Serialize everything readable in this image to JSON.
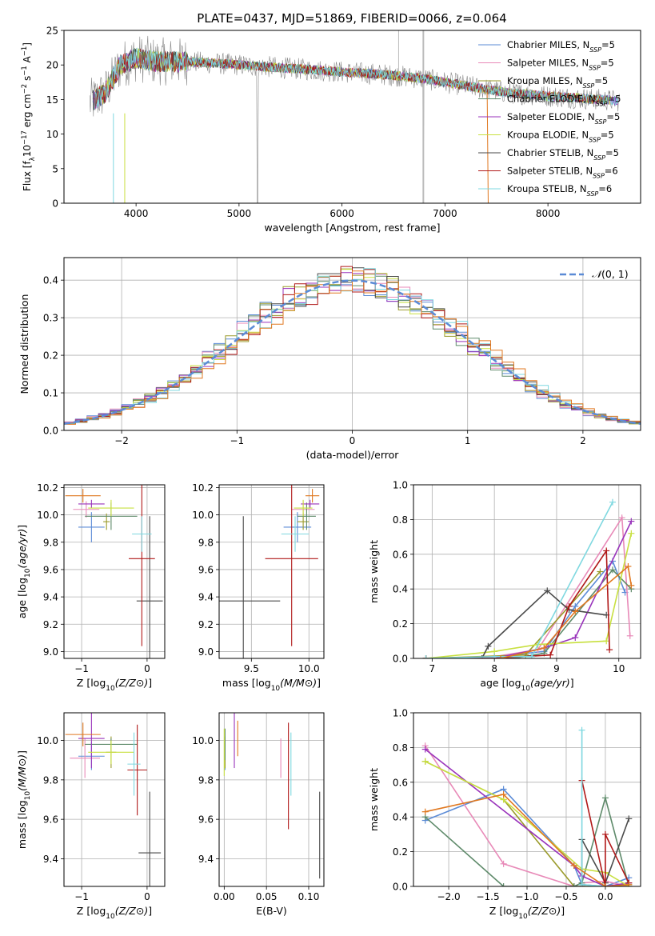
{
  "figure": {
    "title": "PLATE=0437, MJD=51869, FIBERID=0066, z=0.064"
  },
  "colors": {
    "c1": "#5b8bd6",
    "c2": "#e88ab8",
    "c3": "#9a9a2a",
    "c4": "#5e8a6a",
    "c5": "#9933bb",
    "c6": "#c8e040",
    "c7": "#4a4a4a",
    "c8": "#b01818",
    "c9": "#7fd8e0",
    "c10": "#e07820",
    "norm": "#5b8bd6",
    "grid": "#b0b0b0"
  },
  "chart_data": [
    {
      "id": "spectrum",
      "type": "line",
      "xlabel": "wavelength [Angstrom, rest frame]",
      "ylabel": "Flux [fλ10⁻¹⁷ erg cm⁻² s⁻¹ A⁻¹]",
      "xlim": [
        3300,
        8900
      ],
      "ylim": [
        0,
        25
      ],
      "xticks": [
        4000,
        5000,
        6000,
        7000,
        8000
      ],
      "yticks": [
        0,
        5,
        10,
        15,
        20,
        25
      ],
      "grid": false,
      "legend_position": "top-right",
      "data_range": [
        3550,
        8700
      ],
      "spectrum_knots": {
        "x": [
          3550,
          3700,
          3850,
          4000,
          4200,
          4500,
          5000,
          5500,
          6000,
          6500,
          6800,
          7000,
          7200,
          7400,
          7600,
          8000,
          8500,
          8700
        ],
        "y": [
          14.5,
          16,
          20,
          21,
          20.5,
          20.5,
          20,
          19.5,
          19,
          18.5,
          18,
          17.5,
          17,
          16.5,
          16,
          15.5,
          15,
          14.8
        ]
      },
      "series": [
        {
          "name": "Chabrier MILES, N_SSP=5",
          "label": "Chabrier MILES, N",
          "sub": "SSP",
          "tail": "=5",
          "color": "#5b8bd6"
        },
        {
          "name": "Salpeter MILES, N_SSP=5",
          "label": "Salpeter MILES, N",
          "sub": "SSP",
          "tail": "=5",
          "color": "#e88ab8"
        },
        {
          "name": "Kroupa MILES, N_SSP=5",
          "label": "Kroupa MILES, N",
          "sub": "SSP",
          "tail": "=5",
          "color": "#9a9a2a"
        },
        {
          "name": "Chabrier ELODIE, N_SSP=5",
          "label": "Chabrier ELODIE, N",
          "sub": "SSP",
          "tail": "=5",
          "color": "#5e8a6a"
        },
        {
          "name": "Salpeter ELODIE, N_SSP=5",
          "label": "Salpeter ELODIE, N",
          "sub": "SSP",
          "tail": "=5",
          "color": "#9933bb"
        },
        {
          "name": "Kroupa ELODIE, N_SSP=5",
          "label": "Kroupa ELODIE, N",
          "sub": "SSP",
          "tail": "=5",
          "color": "#c8e040"
        },
        {
          "name": "Chabrier STELIB, N_SSP=5",
          "label": "Chabrier STELIB, N",
          "sub": "SSP",
          "tail": "=5",
          "color": "#4a4a4a"
        },
        {
          "name": "Salpeter STELIB, N_SSP=6",
          "label": "Salpeter STELIB, N",
          "sub": "SSP",
          "tail": "=6",
          "color": "#b01818"
        },
        {
          "name": "Kroupa STELIB, N_SSP=6",
          "label": "Kroupa STELIB, N",
          "sub": "SSP",
          "tail": "=6",
          "color": "#7fd8e0"
        }
      ]
    },
    {
      "id": "residuals",
      "type": "bar",
      "xlabel": "(data-model)/error",
      "ylabel": "Normed distribution",
      "xlim": [
        -2.5,
        2.5
      ],
      "ylim": [
        0,
        0.46
      ],
      "xticks": [
        -2,
        -1,
        0,
        1,
        2
      ],
      "yticks": [
        0.0,
        0.1,
        0.2,
        0.3,
        0.4
      ],
      "grid": true,
      "legend_position": "top-right",
      "reference_curve": {
        "name": "N(0,1)",
        "mean": 0,
        "sigma": 1
      },
      "bin_width": 0.1
    },
    {
      "id": "age_vs_Z",
      "type": "scatter",
      "xlabel": "Z [log10(Z/Z⊙)]",
      "ylabel": "age [log10(age/yr)]",
      "xlim": [
        -1.27,
        0.27
      ],
      "ylim": [
        8.95,
        10.22
      ],
      "xticks": [
        -1,
        0
      ],
      "yticks": [
        9.0,
        9.2,
        9.4,
        9.6,
        9.8,
        10.0,
        10.2
      ],
      "grid": true,
      "points": [
        {
          "x": -0.85,
          "y": 9.91,
          "xerr": 0.2,
          "yerr": 0.11,
          "color": "#5b8bd6"
        },
        {
          "x": -0.93,
          "y": 10.04,
          "xerr": 0.2,
          "yerr": 0.06,
          "color": "#e88ab8"
        },
        {
          "x": -0.62,
          "y": 9.95,
          "xerr": 0.05,
          "yerr": 0.06,
          "color": "#9a9a2a"
        },
        {
          "x": -0.55,
          "y": 9.99,
          "xerr": 0.4,
          "yerr": 0.1,
          "color": "#5e8a6a"
        },
        {
          "x": -0.85,
          "y": 10.08,
          "xerr": 0.2,
          "yerr": 0.03,
          "color": "#9933bb"
        },
        {
          "x": -0.55,
          "y": 10.05,
          "xerr": 0.35,
          "yerr": 0.06,
          "color": "#c8e040"
        },
        {
          "x": 0.04,
          "y": 9.37,
          "xerr": 0.2,
          "yerr": 0.62,
          "color": "#4a4a4a"
        },
        {
          "x": -0.08,
          "y": 9.68,
          "xerr": 0.2,
          "yerr": 0.64,
          "color": "#b01818"
        },
        {
          "x": -0.08,
          "y": 9.86,
          "xerr": 0.15,
          "yerr": 0.13,
          "color": "#7fd8e0"
        },
        {
          "x": -0.98,
          "y": 10.14,
          "xerr": 0.27,
          "yerr": 0.05,
          "color": "#e07820"
        }
      ]
    },
    {
      "id": "age_vs_mass",
      "type": "scatter",
      "xlabel": "mass [log10(M/M⊙)]",
      "ylabel": "",
      "xlim": [
        9.22,
        10.13
      ],
      "ylim": [
        8.95,
        10.22
      ],
      "xticks": [
        9.5,
        10.0
      ],
      "yticks": [
        9.0,
        9.2,
        9.4,
        9.6,
        9.8,
        10.0,
        10.2
      ],
      "grid": true,
      "points": [
        {
          "x": 9.9,
          "y": 9.91,
          "xerr": 0.12,
          "yerr": 0.11,
          "color": "#5b8bd6"
        },
        {
          "x": 9.95,
          "y": 10.04,
          "xerr": 0.1,
          "yerr": 0.06,
          "color": "#e88ab8"
        },
        {
          "x": 9.95,
          "y": 9.95,
          "xerr": 0.05,
          "yerr": 0.06,
          "color": "#9a9a2a"
        },
        {
          "x": 9.98,
          "y": 9.99,
          "xerr": 0.08,
          "yerr": 0.1,
          "color": "#5e8a6a"
        },
        {
          "x": 10.01,
          "y": 10.08,
          "xerr": 0.08,
          "yerr": 0.03,
          "color": "#9933bb"
        },
        {
          "x": 9.95,
          "y": 10.05,
          "xerr": 0.08,
          "yerr": 0.06,
          "color": "#c8e040"
        },
        {
          "x": 9.43,
          "y": 9.37,
          "xerr": 0.32,
          "yerr": 0.62,
          "color": "#4a4a4a"
        },
        {
          "x": 9.85,
          "y": 9.68,
          "xerr": 0.23,
          "yerr": 0.64,
          "color": "#b01818"
        },
        {
          "x": 9.88,
          "y": 9.86,
          "xerr": 0.12,
          "yerr": 0.13,
          "color": "#7fd8e0"
        },
        {
          "x": 10.03,
          "y": 10.14,
          "xerr": 0.06,
          "yerr": 0.05,
          "color": "#e07820"
        }
      ]
    },
    {
      "id": "mass_weight_vs_age",
      "type": "line",
      "xlabel": "age [log10(age/yr)]",
      "ylabel": "mass weight",
      "xlim": [
        6.7,
        10.35
      ],
      "ylim": [
        0,
        1
      ],
      "xticks": [
        7,
        8,
        9,
        10
      ],
      "yticks": [
        0.0,
        0.2,
        0.4,
        0.6,
        0.8,
        1.0
      ],
      "grid": true,
      "series": [
        {
          "color": "#5b8bd6",
          "x": [
            6.9,
            8.0,
            8.8,
            9.3,
            9.9,
            10.1
          ],
          "y": [
            0.0,
            0.01,
            0.04,
            0.3,
            0.56,
            0.38
          ]
        },
        {
          "color": "#e88ab8",
          "x": [
            6.9,
            8.0,
            8.7,
            10.05,
            10.18
          ],
          "y": [
            0.0,
            0.01,
            0.05,
            0.81,
            0.13
          ]
        },
        {
          "color": "#9a9a2a",
          "x": [
            6.9,
            8.5,
            9.7
          ],
          "y": [
            0.0,
            0.02,
            0.5
          ]
        },
        {
          "color": "#5e8a6a",
          "x": [
            6.9,
            8.3,
            8.8,
            9.9,
            10.2
          ],
          "y": [
            0.0,
            0.0,
            0.03,
            0.51,
            0.4
          ]
        },
        {
          "color": "#9933bb",
          "x": [
            6.9,
            8.0,
            8.8,
            9.3,
            10.2
          ],
          "y": [
            0.0,
            0.0,
            0.06,
            0.12,
            0.79
          ]
        },
        {
          "color": "#c8e040",
          "x": [
            6.9,
            8.0,
            8.7,
            9.8,
            10.2
          ],
          "y": [
            0.0,
            0.04,
            0.08,
            0.1,
            0.72
          ]
        },
        {
          "color": "#4a4a4a",
          "x": [
            7.8,
            7.9,
            8.85,
            9.2,
            9.8
          ],
          "y": [
            0.0,
            0.07,
            0.39,
            0.28,
            0.25
          ]
        },
        {
          "color": "#b01818",
          "x": [
            6.9,
            8.0,
            8.9,
            9.2,
            9.8,
            9.85
          ],
          "y": [
            0.0,
            0.0,
            0.02,
            0.3,
            0.62,
            0.05
          ]
        },
        {
          "color": "#7fd8e0",
          "x": [
            6.9,
            8.0,
            8.6,
            9.9
          ],
          "y": [
            0.0,
            0.01,
            0.01,
            0.9
          ]
        },
        {
          "color": "#e07820",
          "x": [
            8.1,
            8.8,
            9.3,
            10.15,
            10.2
          ],
          "y": [
            0.0,
            0.06,
            0.27,
            0.53,
            0.42
          ]
        }
      ]
    },
    {
      "id": "mass_vs_Z",
      "type": "scatter",
      "xlabel": "Z [log10(Z/Z⊙)]",
      "ylabel": "mass [log10(M/M⊙)]",
      "xlim": [
        -1.27,
        0.27
      ],
      "ylim": [
        9.26,
        10.14
      ],
      "xticks": [
        -1,
        0
      ],
      "yticks": [
        9.4,
        9.6,
        9.8,
        10.0
      ],
      "grid": true,
      "points": [
        {
          "x": -0.85,
          "y": 9.92,
          "xerr": 0.2,
          "yerr": 0.07,
          "color": "#5b8bd6"
        },
        {
          "x": -0.95,
          "y": 9.91,
          "xerr": 0.23,
          "yerr": 0.1,
          "color": "#e88ab8"
        },
        {
          "x": -0.55,
          "y": 9.94,
          "xerr": 0.08,
          "yerr": 0.08,
          "color": "#9a9a2a"
        },
        {
          "x": -0.55,
          "y": 9.98,
          "xerr": 0.4,
          "yerr": 0.03,
          "color": "#5e8a6a"
        },
        {
          "x": -0.85,
          "y": 10.01,
          "xerr": 0.2,
          "yerr": 0.15,
          "color": "#9933bb"
        },
        {
          "x": -0.55,
          "y": 9.94,
          "xerr": 0.35,
          "yerr": 0.06,
          "color": "#c8e040"
        },
        {
          "x": 0.04,
          "y": 9.43,
          "xerr": 0.17,
          "yerr": 0.31,
          "color": "#4a4a4a"
        },
        {
          "x": -0.15,
          "y": 9.85,
          "xerr": 0.15,
          "yerr": 0.23,
          "color": "#b01818"
        },
        {
          "x": -0.2,
          "y": 9.88,
          "xerr": 0.1,
          "yerr": 0.16,
          "color": "#7fd8e0"
        },
        {
          "x": -0.98,
          "y": 10.03,
          "xerr": 0.27,
          "yerr": 0.06,
          "color": "#e07820"
        }
      ]
    },
    {
      "id": "mass_vs_EBV",
      "type": "scatter",
      "xlabel": "E(B-V)",
      "ylabel": "",
      "xlim": [
        -0.006,
        0.118
      ],
      "ylim": [
        9.26,
        10.14
      ],
      "xticks": [
        0.0,
        0.05,
        0.1
      ],
      "yticks": [
        9.4,
        9.6,
        9.8,
        10.0
      ],
      "grid": true,
      "points": [
        {
          "x": 0.001,
          "y": 9.92,
          "xerr": 0,
          "yerr": 0.07,
          "color": "#5b8bd6"
        },
        {
          "x": 0.067,
          "y": 9.91,
          "xerr": 0,
          "yerr": 0.1,
          "color": "#e88ab8"
        },
        {
          "x": 0.001,
          "y": 9.94,
          "xerr": 0,
          "yerr": 0.08,
          "color": "#9a9a2a"
        },
        {
          "x": 0.001,
          "y": 9.98,
          "xerr": 0,
          "yerr": 0.08,
          "color": "#5e8a6a"
        },
        {
          "x": 0.012,
          "y": 10.01,
          "xerr": 0,
          "yerr": 0.15,
          "color": "#9933bb"
        },
        {
          "x": 0.0,
          "y": 9.94,
          "xerr": 0,
          "yerr": 0.12,
          "color": "#c8e040"
        },
        {
          "x": 0.113,
          "y": 9.52,
          "xerr": 0,
          "yerr": 0.22,
          "color": "#4a4a4a"
        },
        {
          "x": 0.076,
          "y": 9.82,
          "xerr": 0,
          "yerr": 0.27,
          "color": "#b01818"
        },
        {
          "x": 0.079,
          "y": 9.88,
          "xerr": 0,
          "yerr": 0.16,
          "color": "#7fd8e0"
        },
        {
          "x": 0.016,
          "y": 10.01,
          "xerr": 0,
          "yerr": 0.09,
          "color": "#e07820"
        }
      ]
    },
    {
      "id": "mass_weight_vs_Z",
      "type": "line",
      "xlabel": "Z [log10(Z/Z⊙)]",
      "ylabel": "mass weight",
      "xlim": [
        -2.45,
        0.45
      ],
      "ylim": [
        0,
        1
      ],
      "xticks": [
        -2.0,
        -1.5,
        -1.0,
        -0.5,
        0.0
      ],
      "yticks": [
        0.0,
        0.2,
        0.4,
        0.6,
        0.8,
        1.0
      ],
      "grid": true,
      "series": [
        {
          "color": "#5b8bd6",
          "x": [
            -2.3,
            -1.3,
            -0.4,
            -0.3,
            0.0,
            0.3
          ],
          "y": [
            0.38,
            0.56,
            0.12,
            0.01,
            0.0,
            0.05
          ]
        },
        {
          "color": "#e88ab8",
          "x": [
            -2.3,
            -1.3,
            -0.4,
            -0.3,
            0.0,
            0.3
          ],
          "y": [
            0.81,
            0.13,
            0.0,
            0.02,
            0.03,
            0.0
          ]
        },
        {
          "color": "#9a9a2a",
          "x": [
            -2.3,
            -1.3,
            -0.4,
            -0.3,
            0.0,
            0.3
          ],
          "y": [
            0.72,
            0.5,
            0.0,
            0.0,
            0.0,
            0.01
          ]
        },
        {
          "color": "#5e8a6a",
          "x": [
            -2.3,
            -1.3,
            -0.4,
            -0.3,
            0.0,
            0.3
          ],
          "y": [
            0.4,
            0.0,
            0.0,
            0.02,
            0.51,
            0.0
          ]
        },
        {
          "color": "#9933bb",
          "x": [
            -2.3,
            -0.4,
            -0.3,
            0.0,
            0.3
          ],
          "y": [
            0.79,
            0.12,
            0.06,
            0.0,
            0.02
          ]
        },
        {
          "color": "#c8e040",
          "x": [
            -2.3,
            -1.3,
            -0.3,
            0.0,
            0.3
          ],
          "y": [
            0.72,
            0.5,
            0.1,
            0.08,
            0.0
          ]
        },
        {
          "color": "#4a4a4a",
          "x": [
            -0.3,
            -0.3,
            0.0,
            0.3
          ],
          "y": [
            0.0,
            0.27,
            0.02,
            0.39
          ]
        },
        {
          "color": "#b01818",
          "x": [
            -0.3,
            0.0,
            0.0,
            0.3
          ],
          "y": [
            0.61,
            0.0,
            0.3,
            0.02
          ]
        },
        {
          "color": "#7fd8e0",
          "x": [
            -0.3,
            -0.3,
            0.0
          ],
          "y": [
            0.9,
            0.01,
            0.0
          ]
        },
        {
          "color": "#e07820",
          "x": [
            -2.3,
            -1.3,
            -0.4,
            0.0,
            0.3
          ],
          "y": [
            0.43,
            0.53,
            0.12,
            0.0,
            0.01
          ]
        }
      ]
    }
  ]
}
